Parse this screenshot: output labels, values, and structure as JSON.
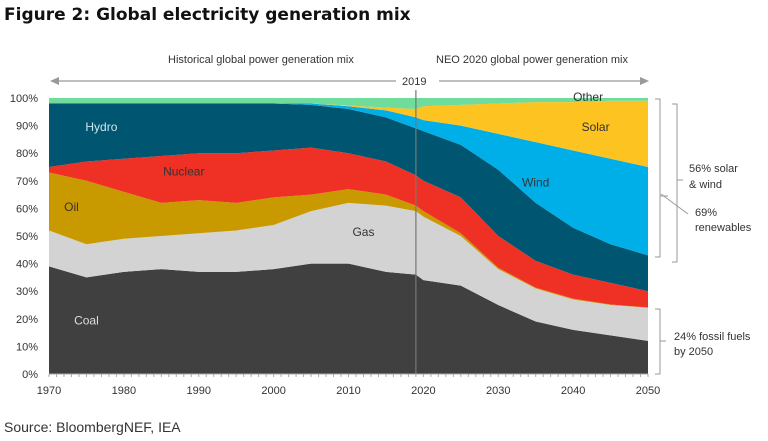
{
  "chart_data": {
    "type": "area",
    "stacked": true,
    "title": "Figure 2: Global electricity generation mix",
    "source": "Source: BloombergNEF, IEA",
    "x": [
      1970,
      1975,
      1980,
      1985,
      1990,
      1995,
      2000,
      2005,
      2010,
      2015,
      2019,
      2020,
      2025,
      2030,
      2035,
      2040,
      2045,
      2050
    ],
    "xlim": [
      1970,
      2050
    ],
    "ylim": [
      0,
      100
    ],
    "xticks": [
      "1970",
      "1980",
      "1990",
      "2000",
      "2010",
      "2020",
      "2030",
      "2040",
      "2050"
    ],
    "yticks": [
      "0%",
      "10%",
      "20%",
      "30%",
      "40%",
      "50%",
      "60%",
      "70%",
      "80%",
      "90%",
      "100%"
    ],
    "series": [
      {
        "name": "Coal",
        "color": "#404040",
        "label_color": "#dddddd",
        "values": [
          39,
          35,
          37,
          38,
          37,
          37,
          38,
          40,
          40,
          37,
          36,
          34,
          32,
          25,
          19,
          16,
          14,
          12
        ]
      },
      {
        "name": "Gas",
        "color": "#d3d3d3",
        "label_color": "#333333",
        "values": [
          13,
          12,
          12,
          12,
          14,
          15,
          16,
          19,
          22,
          24,
          23,
          23,
          18,
          13,
          12,
          11,
          11,
          12
        ]
      },
      {
        "name": "Oil",
        "color": "#c99a00",
        "label_color": "#333333",
        "values": [
          21,
          23,
          17,
          12,
          12,
          10,
          10,
          6,
          5,
          4,
          2,
          2,
          1,
          0.5,
          0.3,
          0.3,
          0.2,
          0.1
        ]
      },
      {
        "name": "Nuclear",
        "color": "#ee3124",
        "label_color": "#333333",
        "values": [
          2,
          7,
          12,
          17,
          17,
          18,
          17,
          17,
          13,
          12,
          11,
          11,
          13,
          11.5,
          9.7,
          8.7,
          7.8,
          5.9
        ]
      },
      {
        "name": "Hydro",
        "color": "#005670",
        "label_color": "#cfe6ee",
        "values": [
          23,
          21,
          20,
          19,
          18,
          18,
          17,
          15.5,
          16,
          16,
          17,
          18,
          19,
          24,
          21,
          17,
          14,
          13
        ]
      },
      {
        "name": "Wind",
        "color": "#00aee8",
        "label_color": "#333333",
        "values": [
          0,
          0,
          0,
          0,
          0,
          0,
          0,
          0.5,
          1,
          2.5,
          4,
          4,
          7,
          13,
          22,
          28,
          31,
          32
        ]
      },
      {
        "name": "Solar",
        "color": "#fdc321",
        "label_color": "#333333",
        "values": [
          0,
          0,
          0,
          0,
          0,
          0,
          0,
          0,
          0.3,
          1,
          3,
          5,
          7.5,
          11,
          14.5,
          17.5,
          21,
          24
        ]
      },
      {
        "name": "Other",
        "color": "#6fdc9b",
        "label_color": "#333333",
        "values": [
          2,
          2,
          2,
          2,
          2,
          2,
          2,
          2,
          2.7,
          3,
          3,
          3,
          2.5,
          2,
          1.5,
          1.5,
          1,
          1
        ]
      }
    ],
    "divider_year": 2019,
    "annotations": {
      "historical": "Historical global power generation mix",
      "forecast": "NEO 2020  global power generation mix",
      "divider_label": "2019",
      "solar_wind": [
        "56% solar",
        "& wind"
      ],
      "renewables": [
        "69%",
        "renewables"
      ],
      "fossil": [
        "24% fossil fuels",
        "by 2050"
      ]
    }
  }
}
